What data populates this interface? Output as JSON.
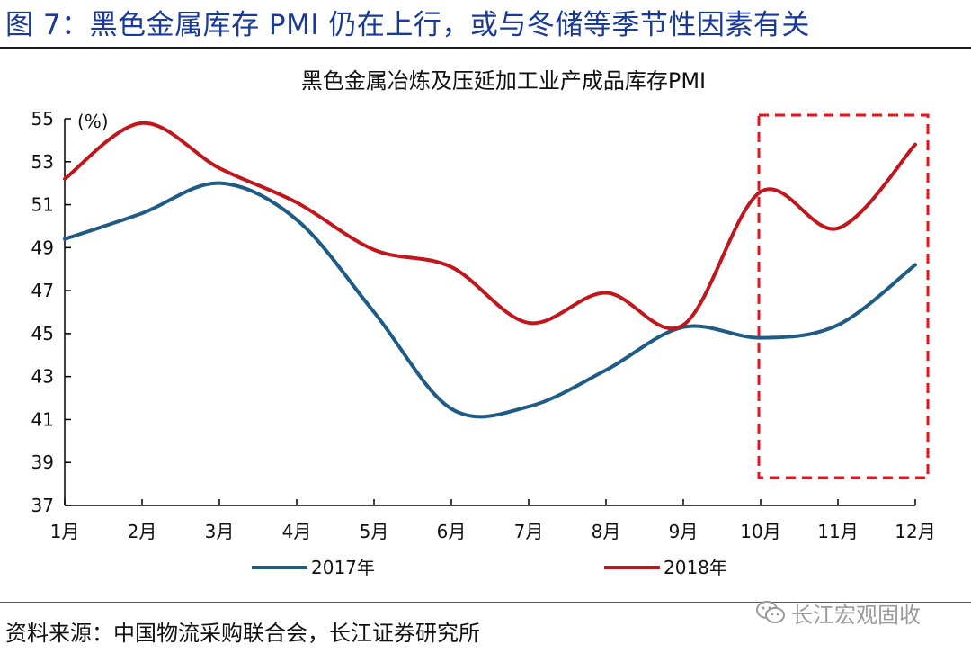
{
  "figure_title": "图 7：黑色金属库存 PMI 仍在上行，或与冬储等季节性因素有关",
  "source_note": "资料来源：中国物流采购联合会，长江证券研究所",
  "watermark": "长江宏观固收",
  "colors": {
    "title": "#1a3a99",
    "series_2017": "#1f5c85",
    "series_2018": "#c0161c",
    "highlight_box": "#e8141b"
  },
  "chart_data": {
    "type": "line",
    "title": "黑色金属冶炼及压延加工业产成品库存PMI",
    "unit_label": "(%)",
    "categories": [
      "1月",
      "2月",
      "3月",
      "4月",
      "5月",
      "6月",
      "7月",
      "8月",
      "9月",
      "10月",
      "11月",
      "12月"
    ],
    "ylim": [
      37,
      55
    ],
    "yticks": [
      37,
      39,
      41,
      43,
      45,
      47,
      49,
      51,
      53,
      55
    ],
    "grid": false,
    "legend_position": "bottom",
    "series": [
      {
        "name": "2017年",
        "color": "#1f5c85",
        "values": [
          49.4,
          50.6,
          52.0,
          50.3,
          46.0,
          41.5,
          41.6,
          43.3,
          45.3,
          44.8,
          45.4,
          48.2
        ]
      },
      {
        "name": "2018年",
        "color": "#c0161c",
        "values": [
          52.2,
          54.8,
          52.7,
          51.1,
          48.9,
          48.1,
          45.5,
          46.9,
          45.4,
          51.6,
          49.9,
          53.8
        ]
      }
    ],
    "annotation": "dashed red box highlighting 10月–12月"
  }
}
